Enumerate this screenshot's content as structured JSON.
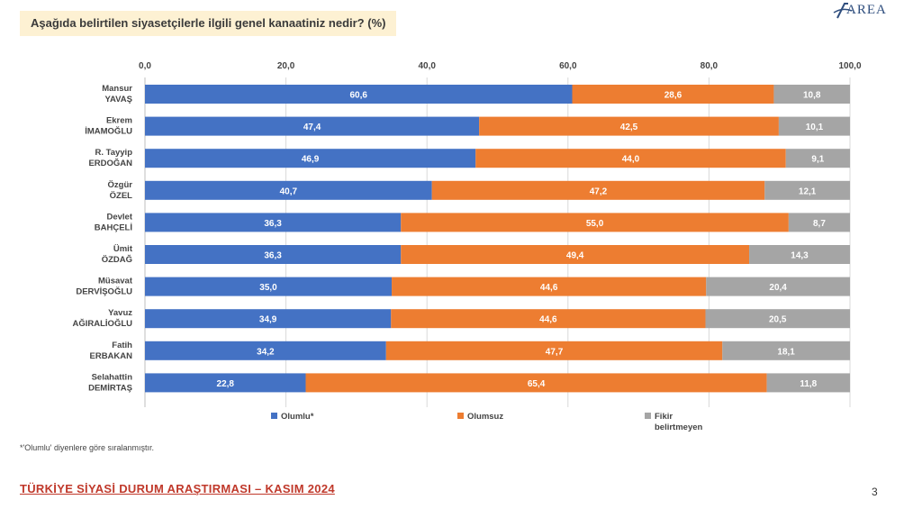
{
  "title": "Aşağıda belirtilen siyasetçilerle ilgili genel kanaatiniz nedir? (%)",
  "logo_text": "AREA",
  "footnote": "*'Olumlu' diyenlere göre sıralanmıştır.",
  "footer_title": "TÜRKİYE SİYASİ DURUM ARAŞTIRMASI – KASIM 2024",
  "page_number": "3",
  "colors": {
    "olumlu": "#4472c4",
    "olumsuz": "#ed7d31",
    "fikir": "#a5a5a5"
  },
  "chart_data": {
    "type": "bar",
    "orientation": "horizontal",
    "stacked": true,
    "categories": [
      [
        "Mansur",
        "YAVAŞ"
      ],
      [
        "Ekrem",
        "İMAMOĞLU"
      ],
      [
        "R. Tayyip",
        "ERDOĞAN"
      ],
      [
        "Özgür",
        "ÖZEL"
      ],
      [
        "Devlet",
        "BAHÇELİ"
      ],
      [
        "Ümit",
        "ÖZDAĞ"
      ],
      [
        "Müsavat",
        "DERVİŞOĞLU"
      ],
      [
        "Yavuz",
        "AĞIRALİOĞLU"
      ],
      [
        "Fatih",
        "ERBAKAN"
      ],
      [
        "Selahattin",
        "DEMİRTAŞ"
      ]
    ],
    "series": [
      {
        "name": "Olumlu*",
        "color": "#4472c4",
        "values": [
          60.6,
          47.4,
          46.9,
          40.7,
          36.3,
          36.3,
          35.0,
          34.9,
          34.2,
          22.8
        ]
      },
      {
        "name": "Olumsuz",
        "color": "#ed7d31",
        "values": [
          28.6,
          42.5,
          44.0,
          47.2,
          55.0,
          49.4,
          44.6,
          44.6,
          47.7,
          65.4
        ]
      },
      {
        "name": "Fikir belirtmeyen",
        "color": "#a5a5a5",
        "values": [
          10.8,
          10.1,
          9.1,
          12.1,
          8.7,
          14.3,
          20.4,
          20.5,
          18.1,
          11.8
        ]
      }
    ],
    "legend_labels": [
      [
        "Olumlu*"
      ],
      [
        "Olumsuz"
      ],
      [
        "Fikir",
        "belirtmeyen"
      ]
    ],
    "xlim": [
      0,
      100
    ],
    "ticks": [
      0,
      20,
      40,
      60,
      80,
      100
    ],
    "tick_labels": [
      "0,0",
      "20,0",
      "40,0",
      "60,0",
      "80,0",
      "100,0"
    ],
    "legend_position": "bottom",
    "grid": true
  }
}
